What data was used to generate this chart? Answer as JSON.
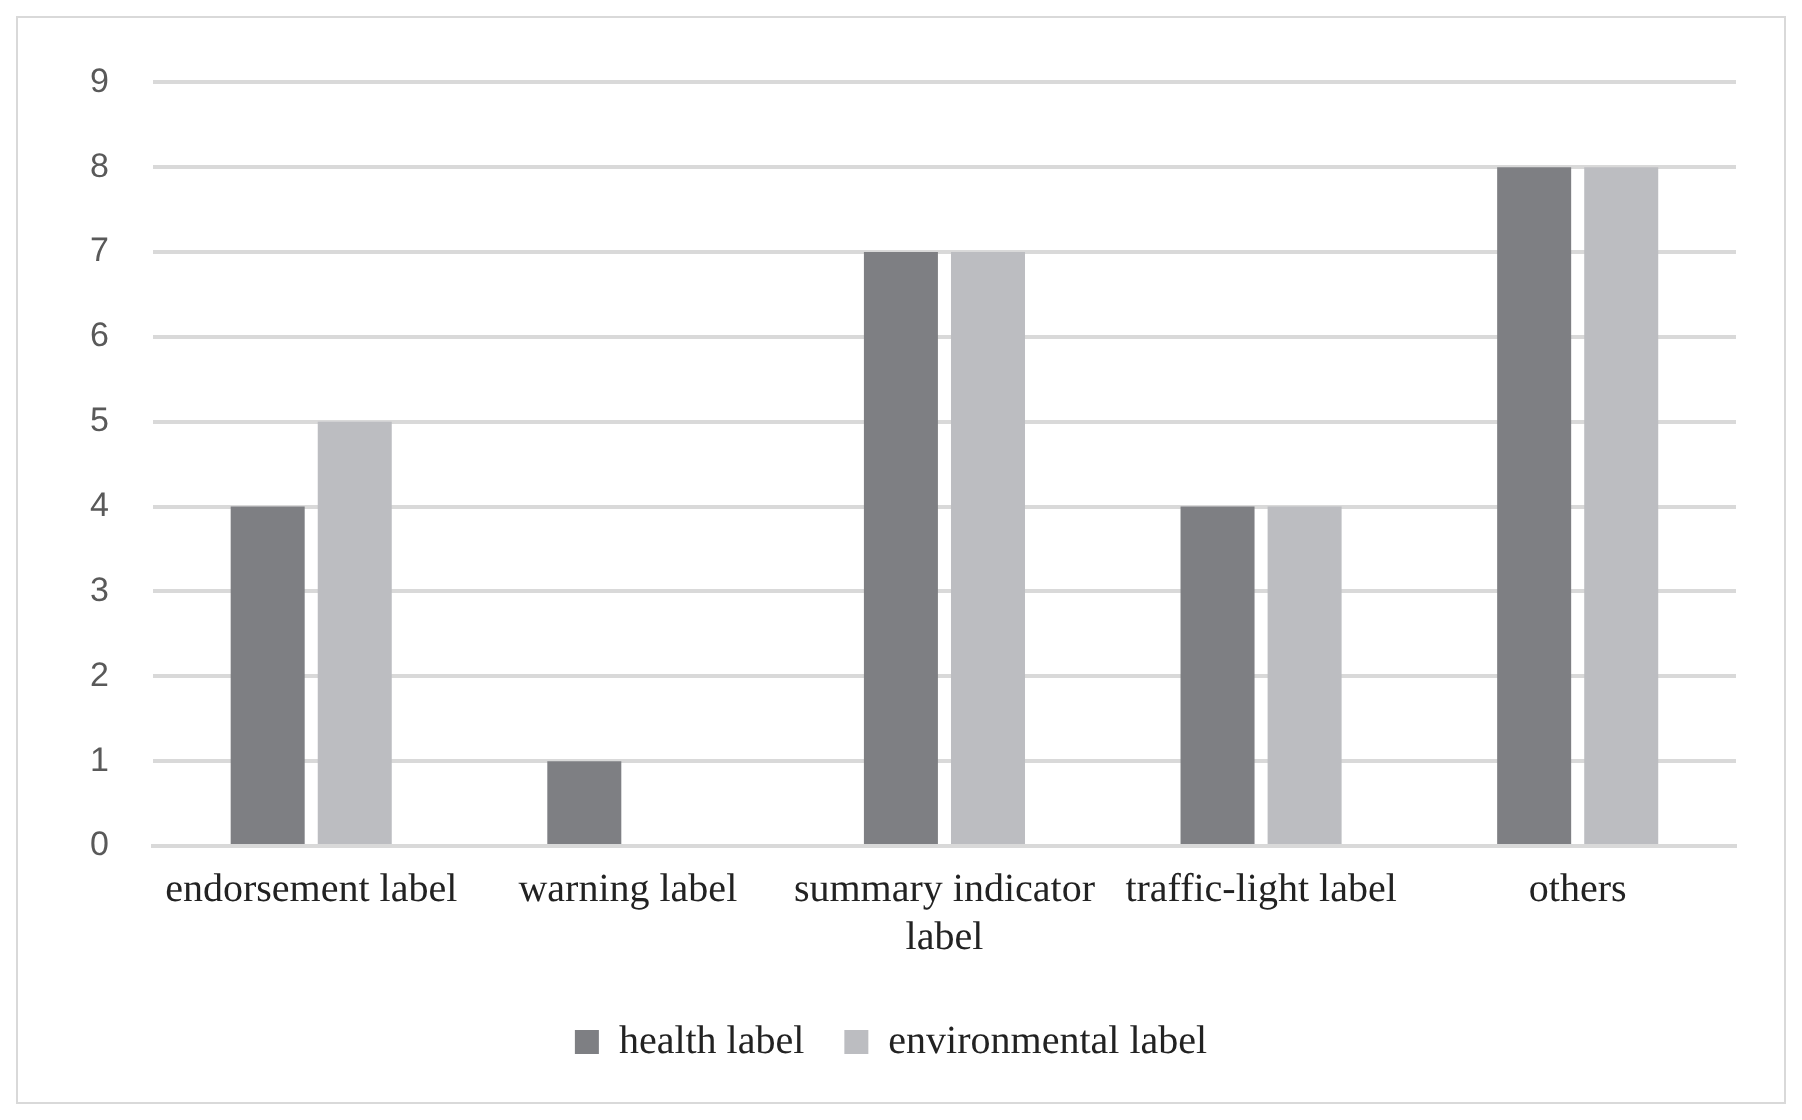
{
  "chart_data": {
    "type": "bar",
    "categories": [
      "endorsement label",
      "warning label",
      "summary indicator label",
      "traffic-light label",
      "others"
    ],
    "series": [
      {
        "name": "health label",
        "color": "#7e7f83",
        "values": [
          4,
          1,
          7,
          4,
          8
        ]
      },
      {
        "name": "environmental label",
        "color": "#bcbdc1",
        "values": [
          5,
          0,
          7,
          4,
          8
        ]
      }
    ],
    "ylim": [
      0,
      9
    ],
    "yticks": [
      0,
      1,
      2,
      3,
      4,
      5,
      6,
      7,
      8,
      9
    ],
    "grid": "y",
    "legend": "bottom"
  }
}
